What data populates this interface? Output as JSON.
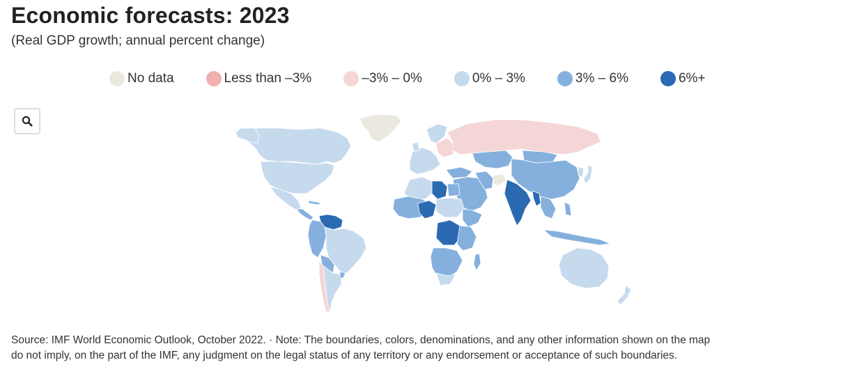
{
  "header": {
    "title": "Economic forecasts: 2023",
    "subtitle": "(Real GDP growth; annual percent change)"
  },
  "legend": {
    "items": [
      {
        "label": "No data",
        "color": "#ebe8df"
      },
      {
        "label": "Less than –3%",
        "color": "#f0b0b0"
      },
      {
        "label": "–3% – 0%",
        "color": "#f4d6d6"
      },
      {
        "label": "0% – 3%",
        "color": "#c6daee"
      },
      {
        "label": "3% – 6%",
        "color": "#85b0de"
      },
      {
        "label": "6%+",
        "color": "#2b6ab2"
      }
    ]
  },
  "controls": {
    "search_icon": "search-icon"
  },
  "footer": {
    "source_line1": "Source: IMF World Economic Outlook, October 2022. · Note: The boundaries, colors, denominations, and any other information shown on the map",
    "source_line2": "do not imply, on the part of the IMF, any judgment on the legal status of any territory or any endorsement or acceptance of such boundaries."
  }
}
